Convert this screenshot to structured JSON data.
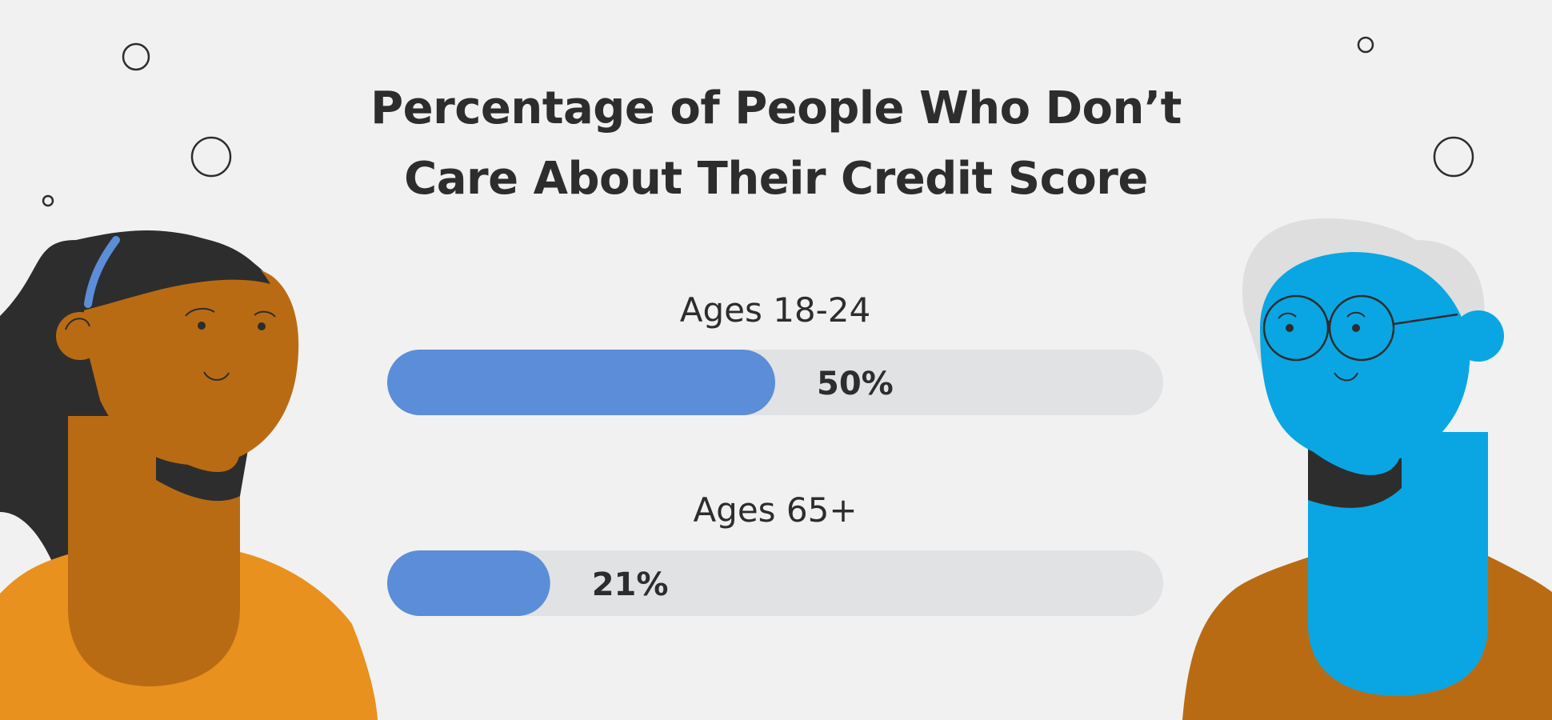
{
  "title": {
    "line1_part1": "Percentage of People Who ",
    "line1_emph": "Don’t",
    "line2_emph": "Care",
    "line2_part2": " About Their Credit Score"
  },
  "colors": {
    "background": "#f1f1f1",
    "bar_fill": "#5b8dd9",
    "bar_track": "#e1e2e4",
    "text": "#2d2d2d",
    "left_skin": "#b96b14",
    "left_hair": "#2d2d2d",
    "left_shirt": "#e8911f",
    "headband": "#5b8dd9",
    "right_skin": "#09a6e3",
    "right_hair": "#dedede",
    "right_shirt": "#b96b14"
  },
  "illustration": {
    "left_person": "woman-with-headband-illustration",
    "right_person": "older-man-with-glasses-illustration"
  },
  "chart_data": {
    "type": "bar",
    "orientation": "horizontal",
    "categories": [
      "Ages 18-24",
      "Ages 65+"
    ],
    "values": [
      50,
      21
    ],
    "value_labels": [
      "50%",
      "21%"
    ],
    "xlim": [
      0,
      100
    ],
    "title": "Percentage of People Who Don’t Care About Their Credit Score",
    "xlabel": "",
    "ylabel": "",
    "grid": false,
    "legend": "none"
  }
}
